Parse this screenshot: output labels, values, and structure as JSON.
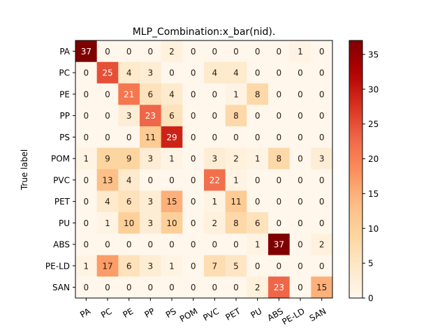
{
  "chart_data": {
    "type": "heatmap",
    "title": "MLP_Combination:x_bar(nid).",
    "ylabel": "True label",
    "xlabel": "",
    "x_categories": [
      "PA",
      "PC",
      "PE",
      "PP",
      "PS",
      "POM",
      "PVC",
      "PET",
      "PU",
      "ABS",
      "PE-LD",
      "SAN"
    ],
    "y_categories": [
      "PA",
      "PC",
      "PE",
      "PP",
      "PS",
      "POM",
      "PVC",
      "PET",
      "PU",
      "ABS",
      "PE-LD",
      "SAN"
    ],
    "matrix": [
      [
        37,
        0,
        0,
        0,
        2,
        0,
        0,
        0,
        0,
        0,
        1,
        0
      ],
      [
        0,
        25,
        4,
        3,
        0,
        0,
        4,
        4,
        0,
        0,
        0,
        0
      ],
      [
        0,
        0,
        21,
        6,
        4,
        0,
        0,
        1,
        8,
        0,
        0,
        0
      ],
      [
        0,
        0,
        3,
        23,
        6,
        0,
        0,
        8,
        0,
        0,
        0,
        0
      ],
      [
        0,
        0,
        0,
        11,
        29,
        0,
        0,
        0,
        0,
        0,
        0,
        0
      ],
      [
        1,
        9,
        9,
        3,
        1,
        0,
        3,
        2,
        1,
        8,
        0,
        3
      ],
      [
        0,
        13,
        4,
        0,
        0,
        0,
        22,
        1,
        0,
        0,
        0,
        0
      ],
      [
        0,
        4,
        6,
        3,
        15,
        0,
        1,
        11,
        0,
        0,
        0,
        0
      ],
      [
        0,
        1,
        10,
        3,
        10,
        0,
        2,
        8,
        6,
        0,
        0,
        0
      ],
      [
        0,
        0,
        0,
        0,
        0,
        0,
        0,
        0,
        1,
        37,
        0,
        2
      ],
      [
        1,
        17,
        6,
        3,
        1,
        0,
        7,
        5,
        0,
        0,
        0,
        0
      ],
      [
        0,
        0,
        0,
        0,
        0,
        0,
        0,
        0,
        2,
        23,
        0,
        15
      ]
    ],
    "colormap": "OrRd",
    "colorbar": {
      "min": 0,
      "max": 37,
      "ticks": [
        0,
        5,
        10,
        15,
        20,
        25,
        30,
        35
      ]
    },
    "grid": false
  }
}
